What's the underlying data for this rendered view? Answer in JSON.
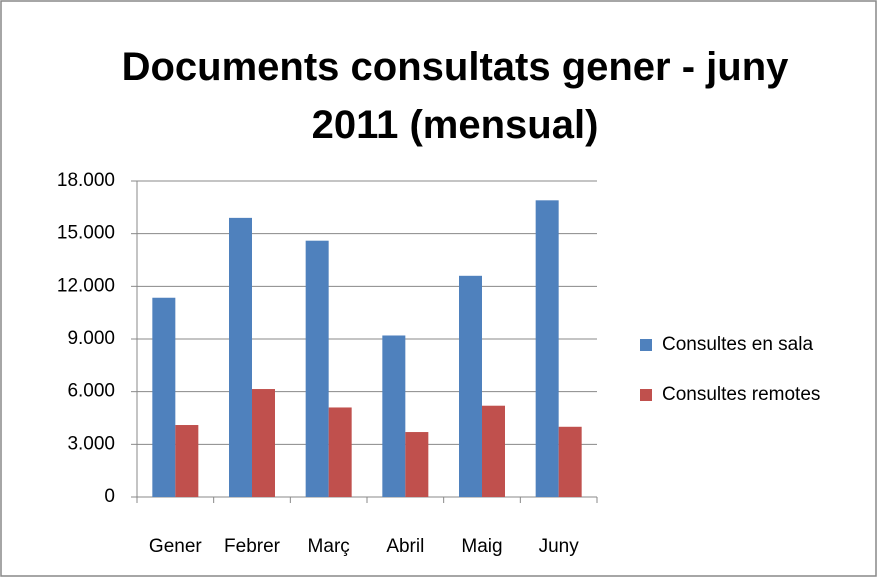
{
  "chart_data": {
    "type": "bar",
    "title": "Documents consultats gener - juny 2011 (mensual)",
    "categories": [
      "Gener",
      "Febrer",
      "Març",
      "Abril",
      "Maig",
      "Juny"
    ],
    "series": [
      {
        "name": "Consultes en sala",
        "color": "#4f81bd",
        "values": [
          11350,
          15900,
          14600,
          9200,
          12600,
          16900
        ]
      },
      {
        "name": "Consultes remotes",
        "color": "#c0504d",
        "values": [
          4100,
          6150,
          5100,
          3700,
          5200,
          4000
        ]
      }
    ],
    "ylim": [
      0,
      18000
    ],
    "yticks": [
      0,
      {
        "value": 3000,
        "label": "3.000"
      },
      {
        "value": 6000,
        "label": "6.000"
      },
      {
        "value": 9000,
        "label": "9.000"
      },
      {
        "value": 12000,
        "label": "12.000"
      },
      {
        "value": 15000,
        "label": "15.000"
      },
      {
        "value": 18000,
        "label": "18.000"
      }
    ],
    "grid": true,
    "legend": "right"
  }
}
